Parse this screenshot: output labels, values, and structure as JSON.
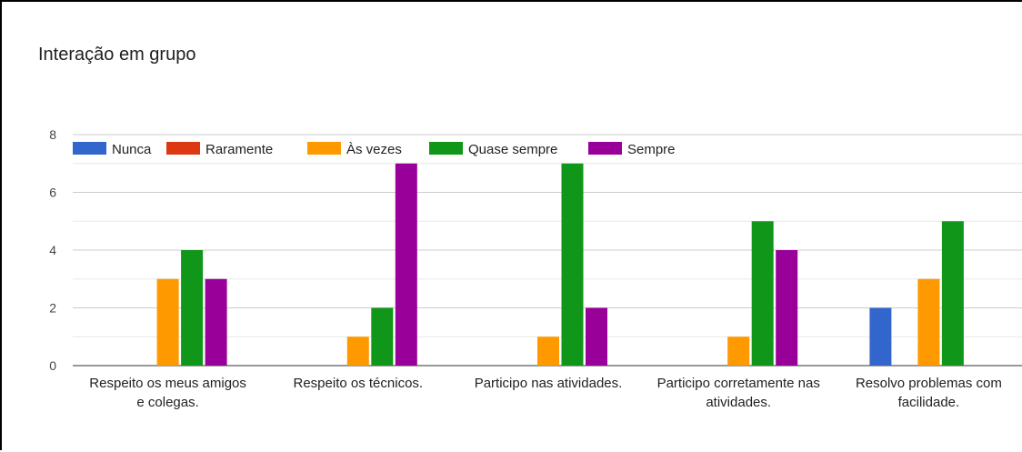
{
  "chart_data": {
    "type": "bar",
    "title": "Interação em grupo",
    "categories": [
      [
        "Respeito os meus amigos",
        "e colegas."
      ],
      [
        "Respeito os técnicos."
      ],
      [
        "Participo nas atividades."
      ],
      [
        "Participo corretamente nas",
        "atividades."
      ],
      [
        "Resolvo problemas com",
        "facilidade."
      ]
    ],
    "series": [
      {
        "name": "Nunca",
        "color": "#3366cc",
        "values": [
          0,
          0,
          0,
          0,
          2
        ]
      },
      {
        "name": "Raramente",
        "color": "#dc3912",
        "values": [
          0,
          0,
          0,
          0,
          0
        ]
      },
      {
        "name": "Às vezes",
        "color": "#ff9900",
        "values": [
          3,
          1,
          1,
          1,
          3
        ]
      },
      {
        "name": "Quase sempre",
        "color": "#109618",
        "values": [
          4,
          2,
          7,
          5,
          5
        ]
      },
      {
        "name": "Sempre",
        "color": "#990099",
        "values": [
          3,
          7,
          2,
          4,
          0
        ]
      }
    ],
    "ylim": [
      0,
      8
    ],
    "yticks": [
      0,
      2,
      4,
      6,
      8
    ],
    "grid": true,
    "legend": "top-left"
  }
}
